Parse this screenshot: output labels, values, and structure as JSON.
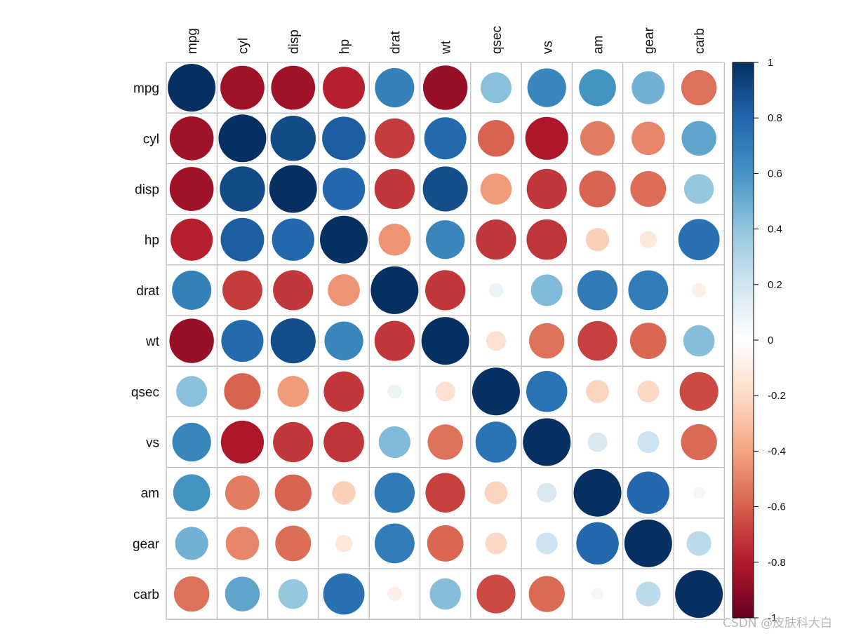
{
  "chart_data": {
    "type": "heatmap",
    "style": "correlation circles",
    "variables": [
      "mpg",
      "cyl",
      "disp",
      "hp",
      "drat",
      "wt",
      "qsec",
      "vs",
      "am",
      "gear",
      "carb"
    ],
    "matrix": [
      [
        1.0,
        -0.85,
        -0.85,
        -0.78,
        0.68,
        -0.87,
        0.42,
        0.66,
        0.6,
        0.48,
        -0.55
      ],
      [
        -0.85,
        1.0,
        0.9,
        0.83,
        -0.7,
        0.78,
        -0.59,
        -0.81,
        -0.52,
        -0.49,
        0.53
      ],
      [
        -0.85,
        0.9,
        1.0,
        0.79,
        -0.71,
        0.89,
        -0.43,
        -0.71,
        -0.59,
        -0.56,
        0.39
      ],
      [
        -0.78,
        0.83,
        0.79,
        1.0,
        -0.45,
        0.66,
        -0.71,
        -0.72,
        -0.24,
        -0.13,
        0.75
      ],
      [
        0.68,
        -0.7,
        -0.71,
        -0.45,
        1.0,
        -0.71,
        0.09,
        0.44,
        0.71,
        0.7,
        -0.09
      ],
      [
        -0.87,
        0.78,
        0.89,
        0.66,
        -0.71,
        1.0,
        -0.17,
        -0.55,
        -0.69,
        -0.58,
        0.43
      ],
      [
        0.42,
        -0.59,
        -0.43,
        -0.71,
        0.09,
        -0.17,
        1.0,
        0.74,
        -0.23,
        -0.21,
        -0.66
      ],
      [
        0.66,
        -0.81,
        -0.71,
        -0.72,
        0.44,
        -0.55,
        0.74,
        1.0,
        0.17,
        0.21,
        -0.57
      ],
      [
        0.6,
        -0.52,
        -0.59,
        -0.24,
        0.71,
        -0.69,
        -0.23,
        0.17,
        1.0,
        0.79,
        0.06
      ],
      [
        0.48,
        -0.49,
        -0.56,
        -0.13,
        0.7,
        -0.58,
        -0.21,
        0.21,
        0.79,
        1.0,
        0.27
      ],
      [
        -0.55,
        0.53,
        0.39,
        0.75,
        -0.09,
        0.43,
        -0.66,
        -0.57,
        0.06,
        0.27,
        1.0
      ]
    ],
    "colorbar": {
      "range": [
        -1,
        1
      ],
      "ticks": [
        1,
        0.8,
        0.6,
        0.4,
        0.2,
        0,
        -0.2,
        -0.4,
        -0.6,
        -0.8,
        -1
      ],
      "tick_labels": [
        "1",
        "0.8",
        "0.6",
        "0.4",
        "0.2",
        "0",
        "-0.2",
        "-0.4",
        "-0.6",
        "-0.8",
        "-1"
      ]
    },
    "colors": {
      "neg_strong": "#67001F",
      "neg_mid": "#D6604D",
      "neutral": "#FFFFFF",
      "pos_mid": "#4393C3",
      "pos_strong": "#053061",
      "grid": "#BEBEBE"
    }
  },
  "watermark": "CSDN @皮肤科大白"
}
